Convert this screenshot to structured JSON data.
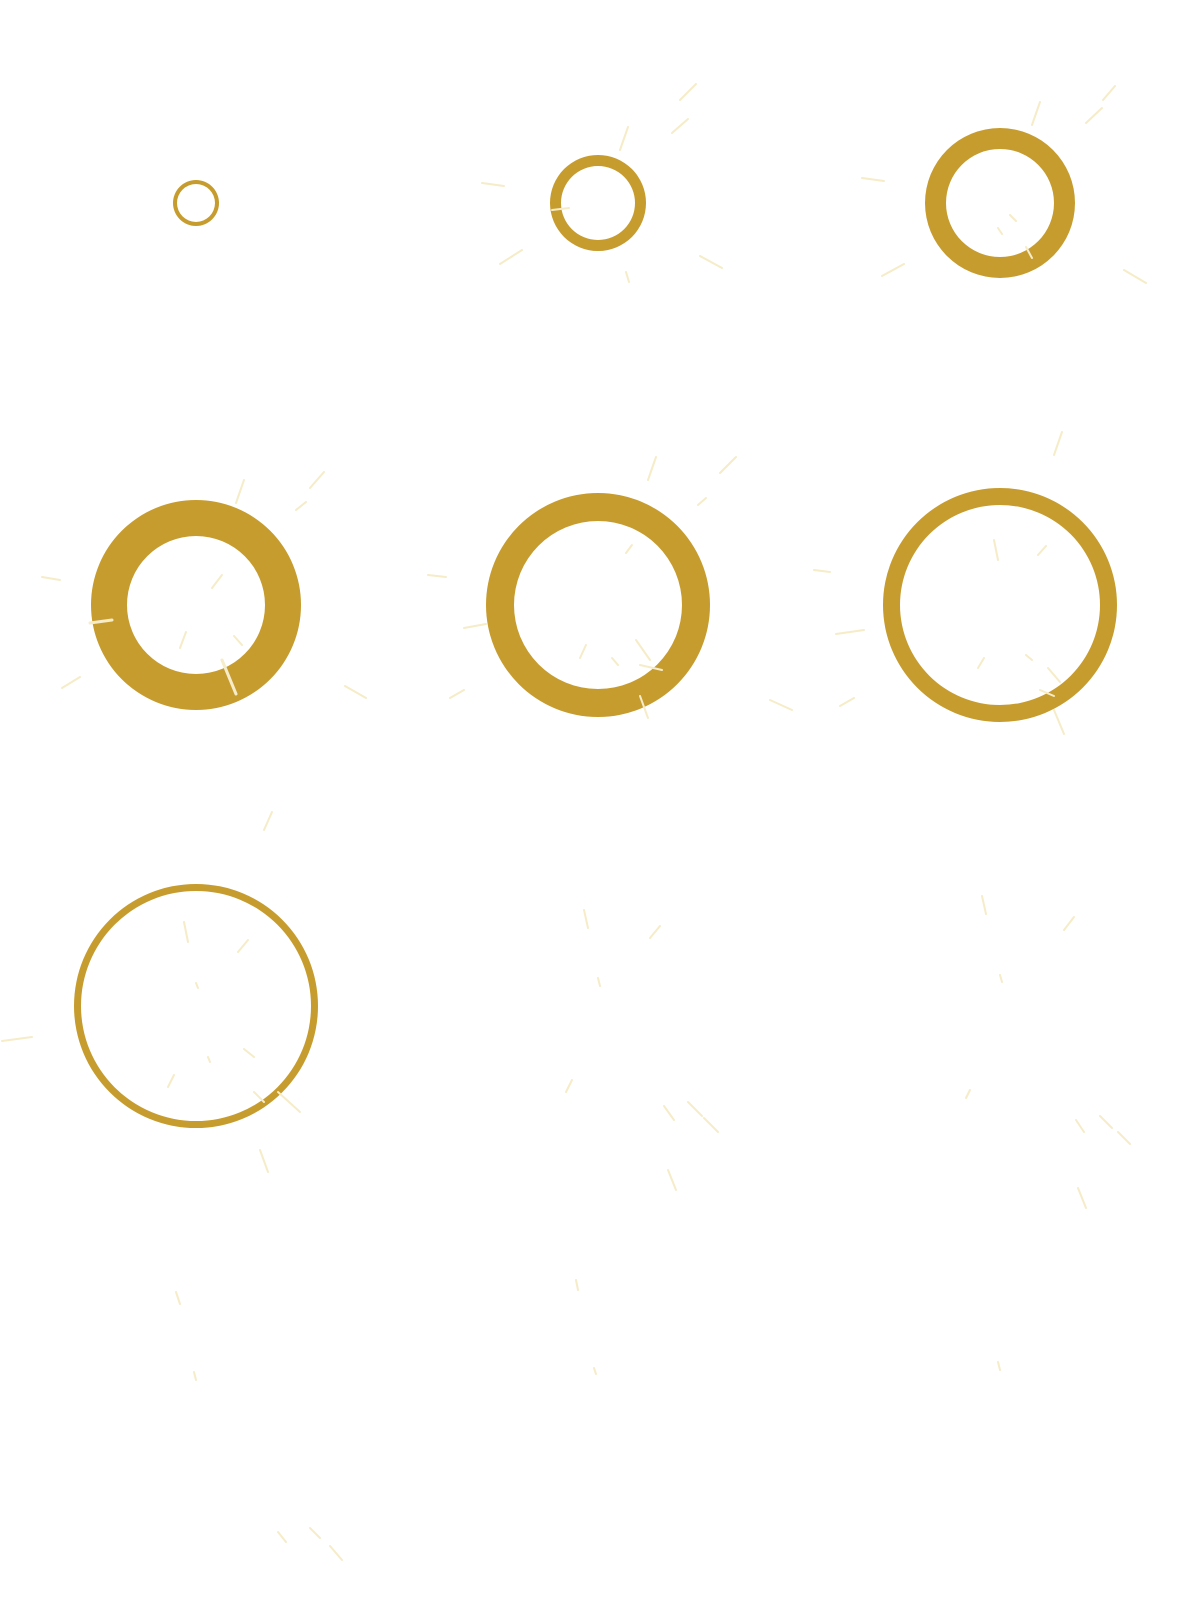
{
  "colors": {
    "background": "#ffffff",
    "ring": "#c79c2f",
    "sparkle": "#f6ecc8",
    "sparkle_on_ring": "#fbf4dd"
  },
  "sprite_sheet": {
    "grid": {
      "columns": 3,
      "rows": 4
    },
    "frames": [
      {
        "frame": 1,
        "ring_visible": true
      },
      {
        "frame": 2,
        "ring_visible": true
      },
      {
        "frame": 3,
        "ring_visible": true
      },
      {
        "frame": 4,
        "ring_visible": true
      },
      {
        "frame": 5,
        "ring_visible": true
      },
      {
        "frame": 6,
        "ring_visible": true
      },
      {
        "frame": 7,
        "ring_visible": true
      },
      {
        "frame": 8,
        "ring_visible": false
      },
      {
        "frame": 9,
        "ring_visible": false
      },
      {
        "frame": 10,
        "ring_visible": false
      },
      {
        "frame": 11,
        "ring_visible": false
      },
      {
        "frame": 12,
        "ring_visible": false
      }
    ]
  }
}
